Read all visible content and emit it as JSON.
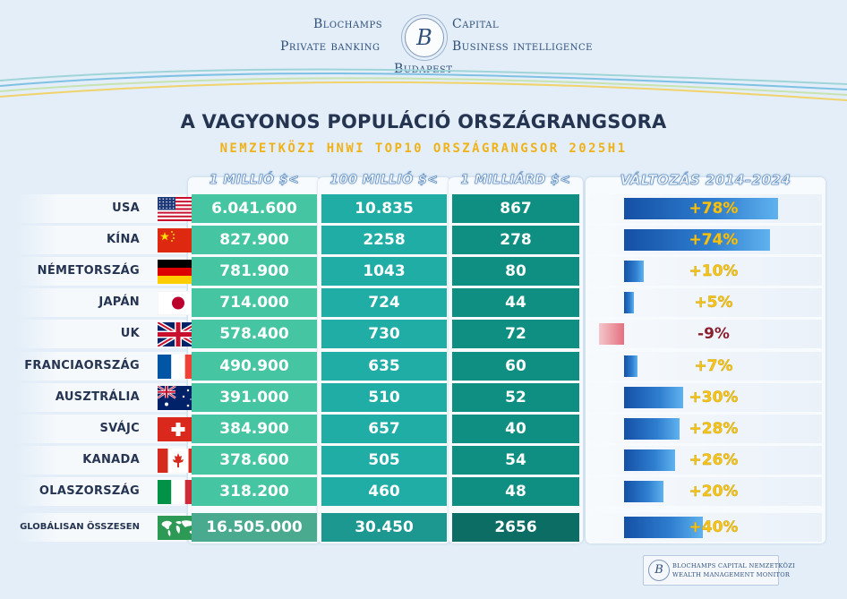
{
  "brand": {
    "left_top": "Blochamps",
    "right_top": "Capital",
    "left_bottom": "Private banking",
    "right_bottom": "Business intelligence",
    "city": "Budapest",
    "logo_letter": "B"
  },
  "chart_data": {
    "type": "table",
    "title": "A VAGYONOS POPULÁCIÓ ORSZÁGRANGSORA",
    "subtitle": "NEMZETKÖZI HNWI TOP10 ORSZÁGRANGSOR 2025H1",
    "columns": [
      "1 MILLIÓ $<",
      "100 MILLIÓ $<",
      "1 MILLIÁRD $<",
      "VÁLTOZÁS 2014–2024"
    ],
    "rows": [
      {
        "country": "USA",
        "flag": "us-flag",
        "m1": "6.041.600",
        "m100": "10.835",
        "b1": "867",
        "change": 78,
        "change_label": "+78%"
      },
      {
        "country": "KÍNA",
        "flag": "china-flag",
        "m1": "827.900",
        "m100": "2258",
        "b1": "278",
        "change": 74,
        "change_label": "+74%"
      },
      {
        "country": "NÉMETORSZÁG",
        "flag": "germany-flag",
        "m1": "781.900",
        "m100": "1043",
        "b1": "80",
        "change": 10,
        "change_label": "+10%"
      },
      {
        "country": "JAPÁN",
        "flag": "japan-flag",
        "m1": "714.000",
        "m100": "724",
        "b1": "44",
        "change": 5,
        "change_label": "+5%"
      },
      {
        "country": "UK",
        "flag": "uk-flag",
        "m1": "578.400",
        "m100": "730",
        "b1": "72",
        "change": -9,
        "change_label": "-9%"
      },
      {
        "country": "FRANCIAORSZÁG",
        "flag": "france-flag",
        "m1": "490.900",
        "m100": "635",
        "b1": "60",
        "change": 7,
        "change_label": "+7%"
      },
      {
        "country": "AUSZTRÁLIA",
        "flag": "australia-flag",
        "m1": "391.000",
        "m100": "510",
        "b1": "52",
        "change": 30,
        "change_label": "+30%"
      },
      {
        "country": "SVÁJC",
        "flag": "switzerland-flag",
        "m1": "384.900",
        "m100": "657",
        "b1": "40",
        "change": 28,
        "change_label": "+28%"
      },
      {
        "country": "KANADA",
        "flag": "canada-flag",
        "m1": "378.600",
        "m100": "505",
        "b1": "54",
        "change": 26,
        "change_label": "+26%"
      },
      {
        "country": "OLASZORSZÁG",
        "flag": "italy-flag",
        "m1": "318.200",
        "m100": "460",
        "b1": "48",
        "change": 20,
        "change_label": "+20%"
      }
    ],
    "total": {
      "label": "GLOBÁLISAN ÖSSZESEN",
      "icon": "world-map-icon",
      "m1": "16.505.000",
      "m100": "30.450",
      "b1": "2656",
      "change": 40,
      "change_label": "+40%"
    }
  },
  "badge": {
    "line1": "BLOCHAMPS CAPITAL NEMZETKÖZI",
    "line2": "WEALTH MANAGEMENT MONITOR"
  },
  "colors": {
    "col1": "#46c5a3",
    "col2": "#20ada6",
    "col3": "#0f8f81",
    "positive_value": "#f6c318",
    "negative_value": "#8a1f2f",
    "title": "#253451",
    "subtitle": "#f0b21a"
  }
}
